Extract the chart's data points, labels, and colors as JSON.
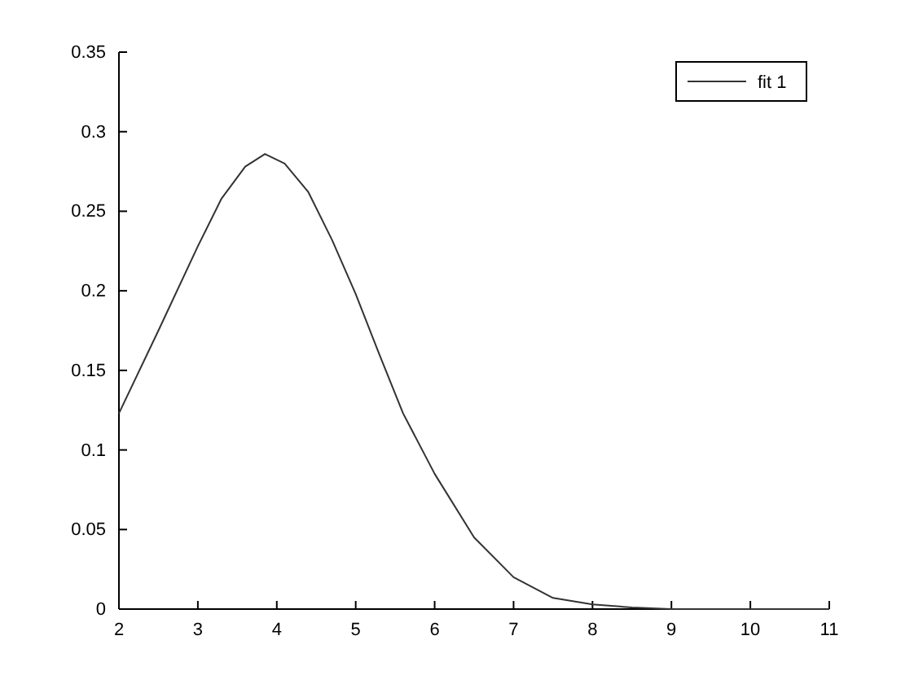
{
  "chart_data": {
    "type": "line",
    "x": [
      2,
      2.5,
      3,
      3.3,
      3.6,
      3.85,
      4.1,
      4.4,
      4.7,
      5,
      5.3,
      5.6,
      6,
      6.5,
      7,
      7.5,
      8,
      8.5,
      9,
      10,
      11
    ],
    "series": [
      {
        "name": "fit 1",
        "color": "#333333",
        "values": [
          0.123,
          0.175,
          0.228,
          0.258,
          0.278,
          0.286,
          0.28,
          0.262,
          0.232,
          0.198,
          0.16,
          0.123,
          0.085,
          0.045,
          0.02,
          0.007,
          0.003,
          0.001,
          0,
          0,
          0
        ]
      }
    ],
    "xlim": [
      2,
      11
    ],
    "xticks": [
      2,
      3,
      4,
      5,
      6,
      7,
      8,
      9,
      10,
      11
    ],
    "ylim": [
      0,
      0.35
    ],
    "yticks": [
      0,
      0.05,
      0.1,
      0.15,
      0.2,
      0.25,
      0.3,
      0.35
    ],
    "legend": "top right",
    "marker": "none",
    "line_style": "solid",
    "grid": false
  }
}
